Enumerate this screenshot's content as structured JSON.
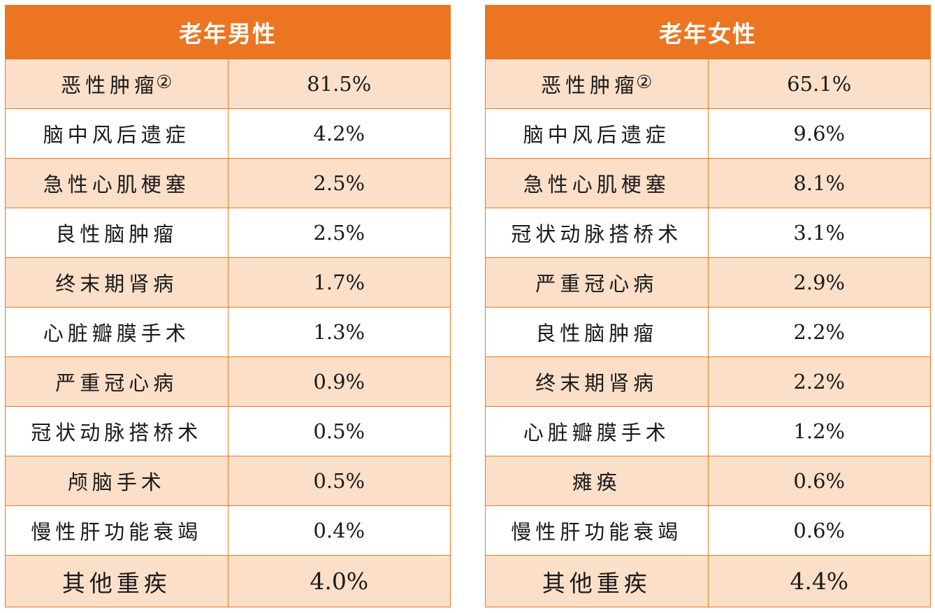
{
  "chart_data": [
    {
      "type": "table",
      "title": "老年男性",
      "rows": [
        {
          "name": "恶性肿瘤",
          "note": "②",
          "value": "81.5%"
        },
        {
          "name": "脑中风后遗症",
          "value": "4.2%"
        },
        {
          "name": "急性心肌梗塞",
          "value": "2.5%"
        },
        {
          "name": "良性脑肿瘤",
          "value": "2.5%"
        },
        {
          "name": "终末期肾病",
          "value": "1.7%"
        },
        {
          "name": "心脏瓣膜手术",
          "value": "1.3%"
        },
        {
          "name": "严重冠心病",
          "value": "0.9%"
        },
        {
          "name": "冠状动脉搭桥术",
          "value": "0.5%"
        },
        {
          "name": "颅脑手术",
          "value": "0.5%"
        },
        {
          "name": "慢性肝功能衰竭",
          "value": "0.4%"
        },
        {
          "name": "其他重疾",
          "value": "4.0%"
        }
      ]
    },
    {
      "type": "table",
      "title": "老年女性",
      "rows": [
        {
          "name": "恶性肿瘤",
          "note": "②",
          "value": "65.1%"
        },
        {
          "name": "脑中风后遗症",
          "value": "9.6%"
        },
        {
          "name": "急性心肌梗塞",
          "value": "8.1%"
        },
        {
          "name": "冠状动脉搭桥术",
          "value": "3.1%"
        },
        {
          "name": "严重冠心病",
          "value": "2.9%"
        },
        {
          "name": "良性脑肿瘤",
          "value": "2.2%"
        },
        {
          "name": "终末期肾病",
          "value": "2.2%"
        },
        {
          "name": "心脏瓣膜手术",
          "value": "1.2%"
        },
        {
          "name": "瘫痪",
          "value": "0.6%"
        },
        {
          "name": "慢性肝功能衰竭",
          "value": "0.6%"
        },
        {
          "name": "其他重疾",
          "value": "4.4%"
        }
      ]
    }
  ],
  "colors": {
    "header": "#ec7522",
    "band": "#fbdfc8",
    "plain": "#ffffff",
    "border": "#ec7522"
  }
}
